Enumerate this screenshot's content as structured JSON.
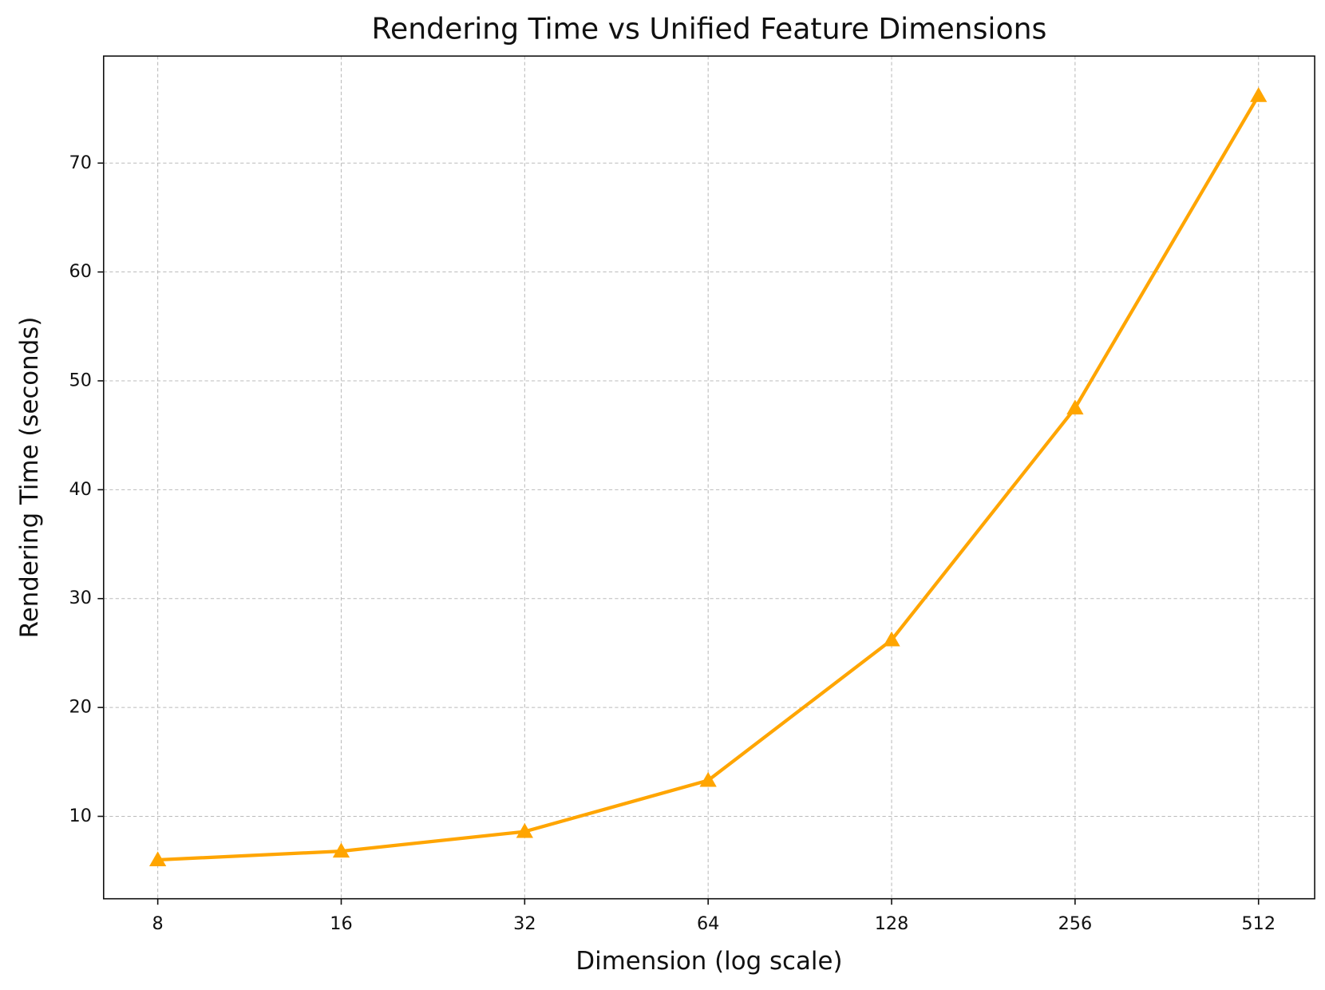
{
  "chart_data": {
    "type": "line",
    "title": "Rendering Time vs Unified Feature Dimensions",
    "x_label": "Dimension (log scale)",
    "y_label": "Rendering Time (seconds)",
    "x": [
      8,
      16,
      32,
      64,
      128,
      256,
      512
    ],
    "series": [
      {
        "name": "Rendering Time",
        "color": "#ffa500",
        "marker": "triangle",
        "values": [
          6.0,
          6.8,
          8.6,
          13.3,
          26.2,
          47.5,
          76.2
        ]
      }
    ],
    "xscale": "log",
    "xlog_base": 2,
    "xlim": [
      6.52,
      633
    ],
    "ylim": [
      2.43,
      79.83
    ],
    "xticks": [
      8,
      16,
      32,
      64,
      128,
      256,
      512
    ],
    "yticks": [
      10,
      20,
      30,
      40,
      50,
      60,
      70
    ],
    "grid": true,
    "legend": false
  }
}
